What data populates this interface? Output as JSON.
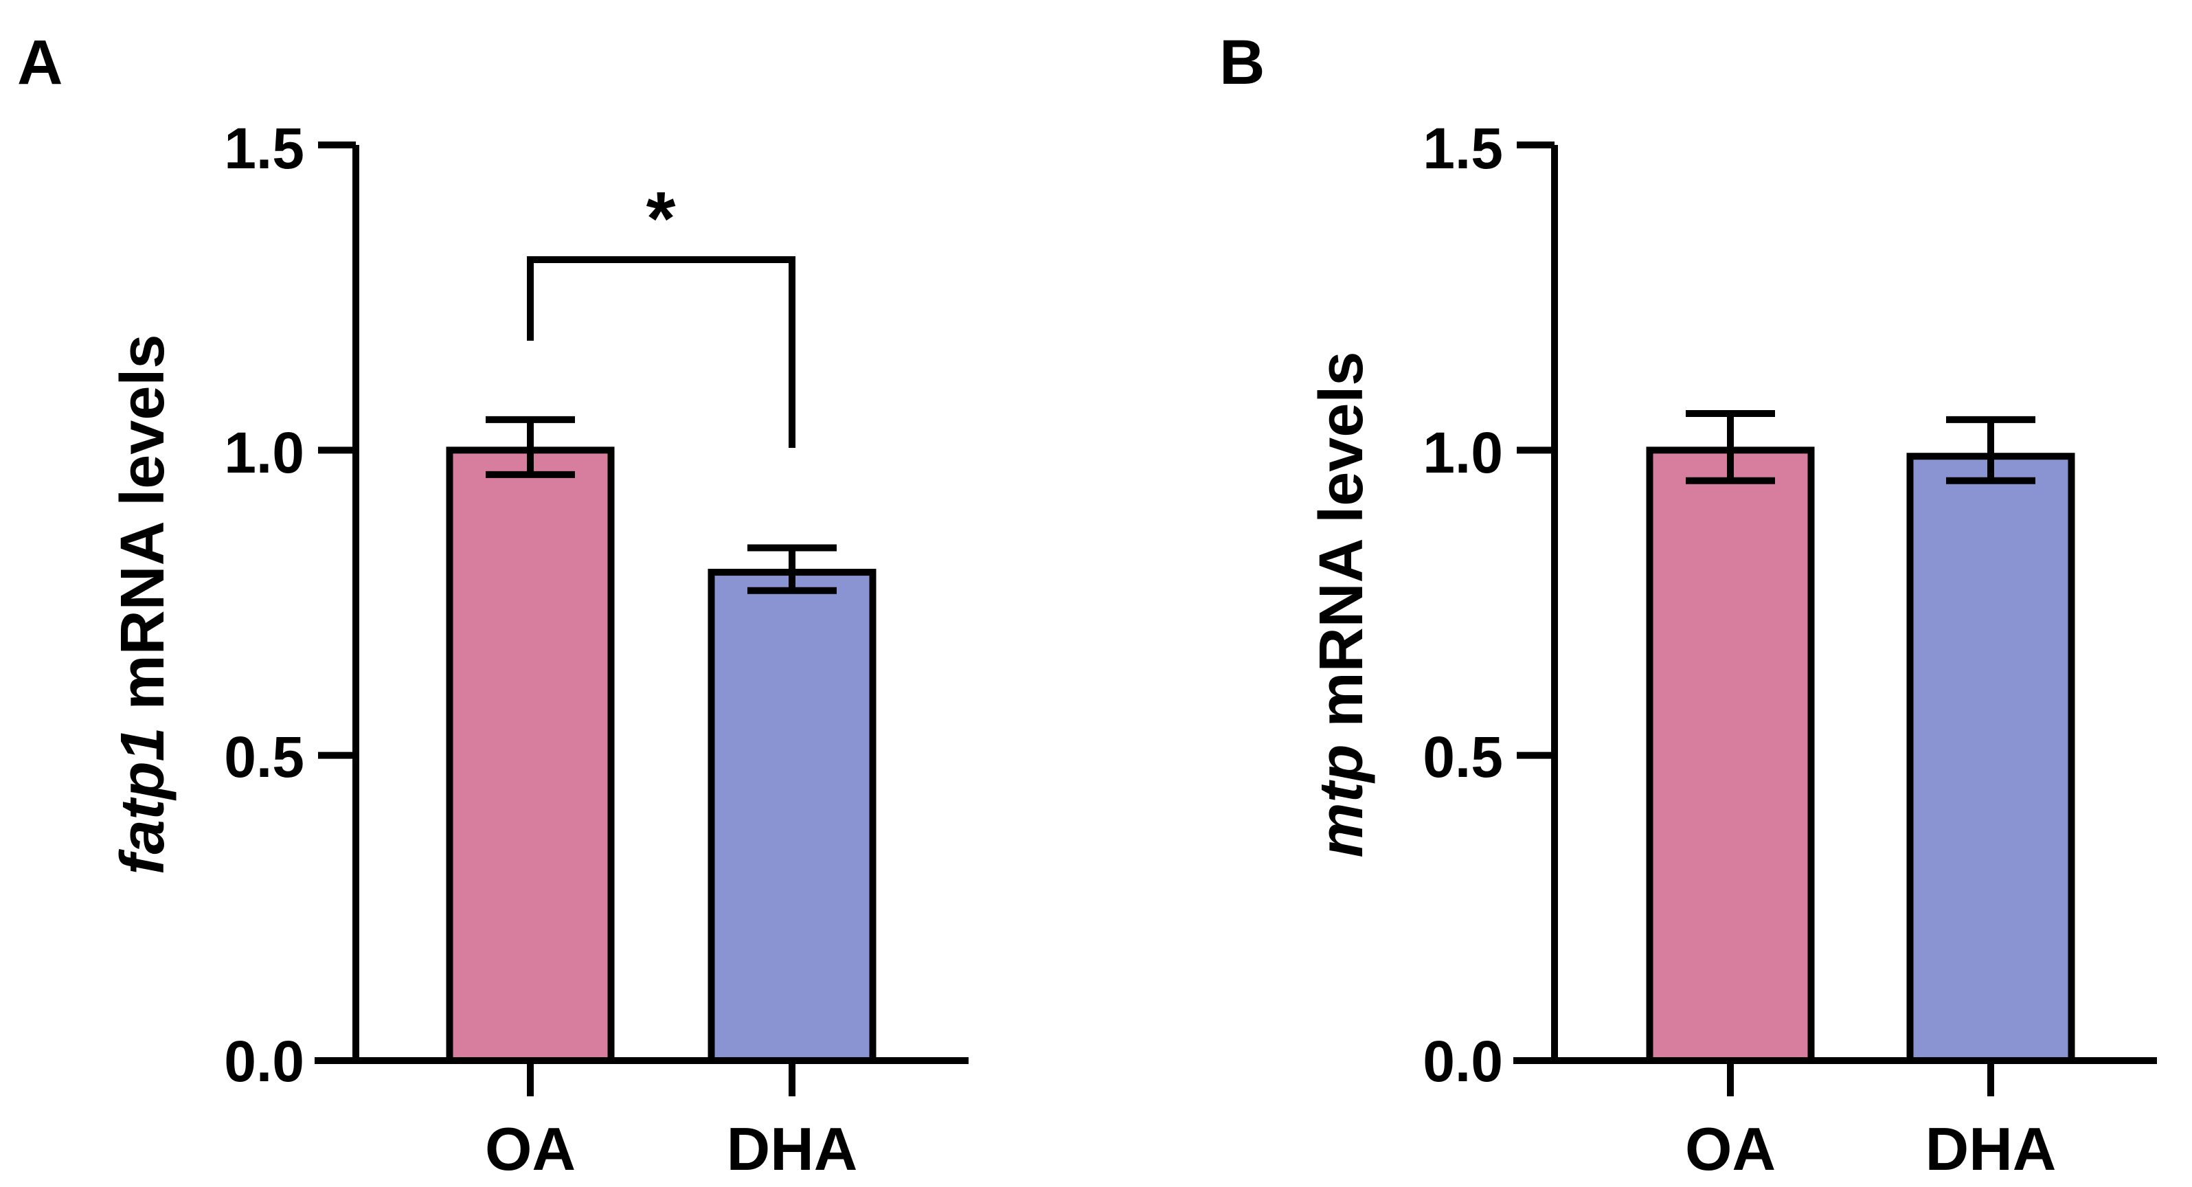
{
  "colors": {
    "OA": "#d77e9f",
    "DHA": "#8b94d2",
    "stroke": "#000000"
  },
  "chart_data": [
    {
      "type": "bar",
      "panel_label": "A",
      "ylabel_gene": "fatp1",
      "ylabel_rest": " mRNA levels",
      "categories": [
        "OA",
        "DHA"
      ],
      "values": [
        1.0,
        0.8
      ],
      "error": [
        [
          0.96,
          1.05
        ],
        [
          0.77,
          0.84
        ]
      ],
      "ylim": [
        0,
        1.5
      ],
      "yticks": [
        "0.0",
        "0.5",
        "1.0",
        "1.5"
      ],
      "significance": {
        "label": "*",
        "pair": [
          "OA",
          "DHA"
        ]
      }
    },
    {
      "type": "bar",
      "panel_label": "B",
      "ylabel_gene": "mtp",
      "ylabel_rest": " mRNA levels",
      "categories": [
        "OA",
        "DHA"
      ],
      "values": [
        1.0,
        0.99
      ],
      "error": [
        [
          0.95,
          1.06
        ],
        [
          0.95,
          1.05
        ]
      ],
      "ylim": [
        0,
        1.5
      ],
      "yticks": [
        "0.0",
        "0.5",
        "1.0",
        "1.5"
      ]
    }
  ]
}
